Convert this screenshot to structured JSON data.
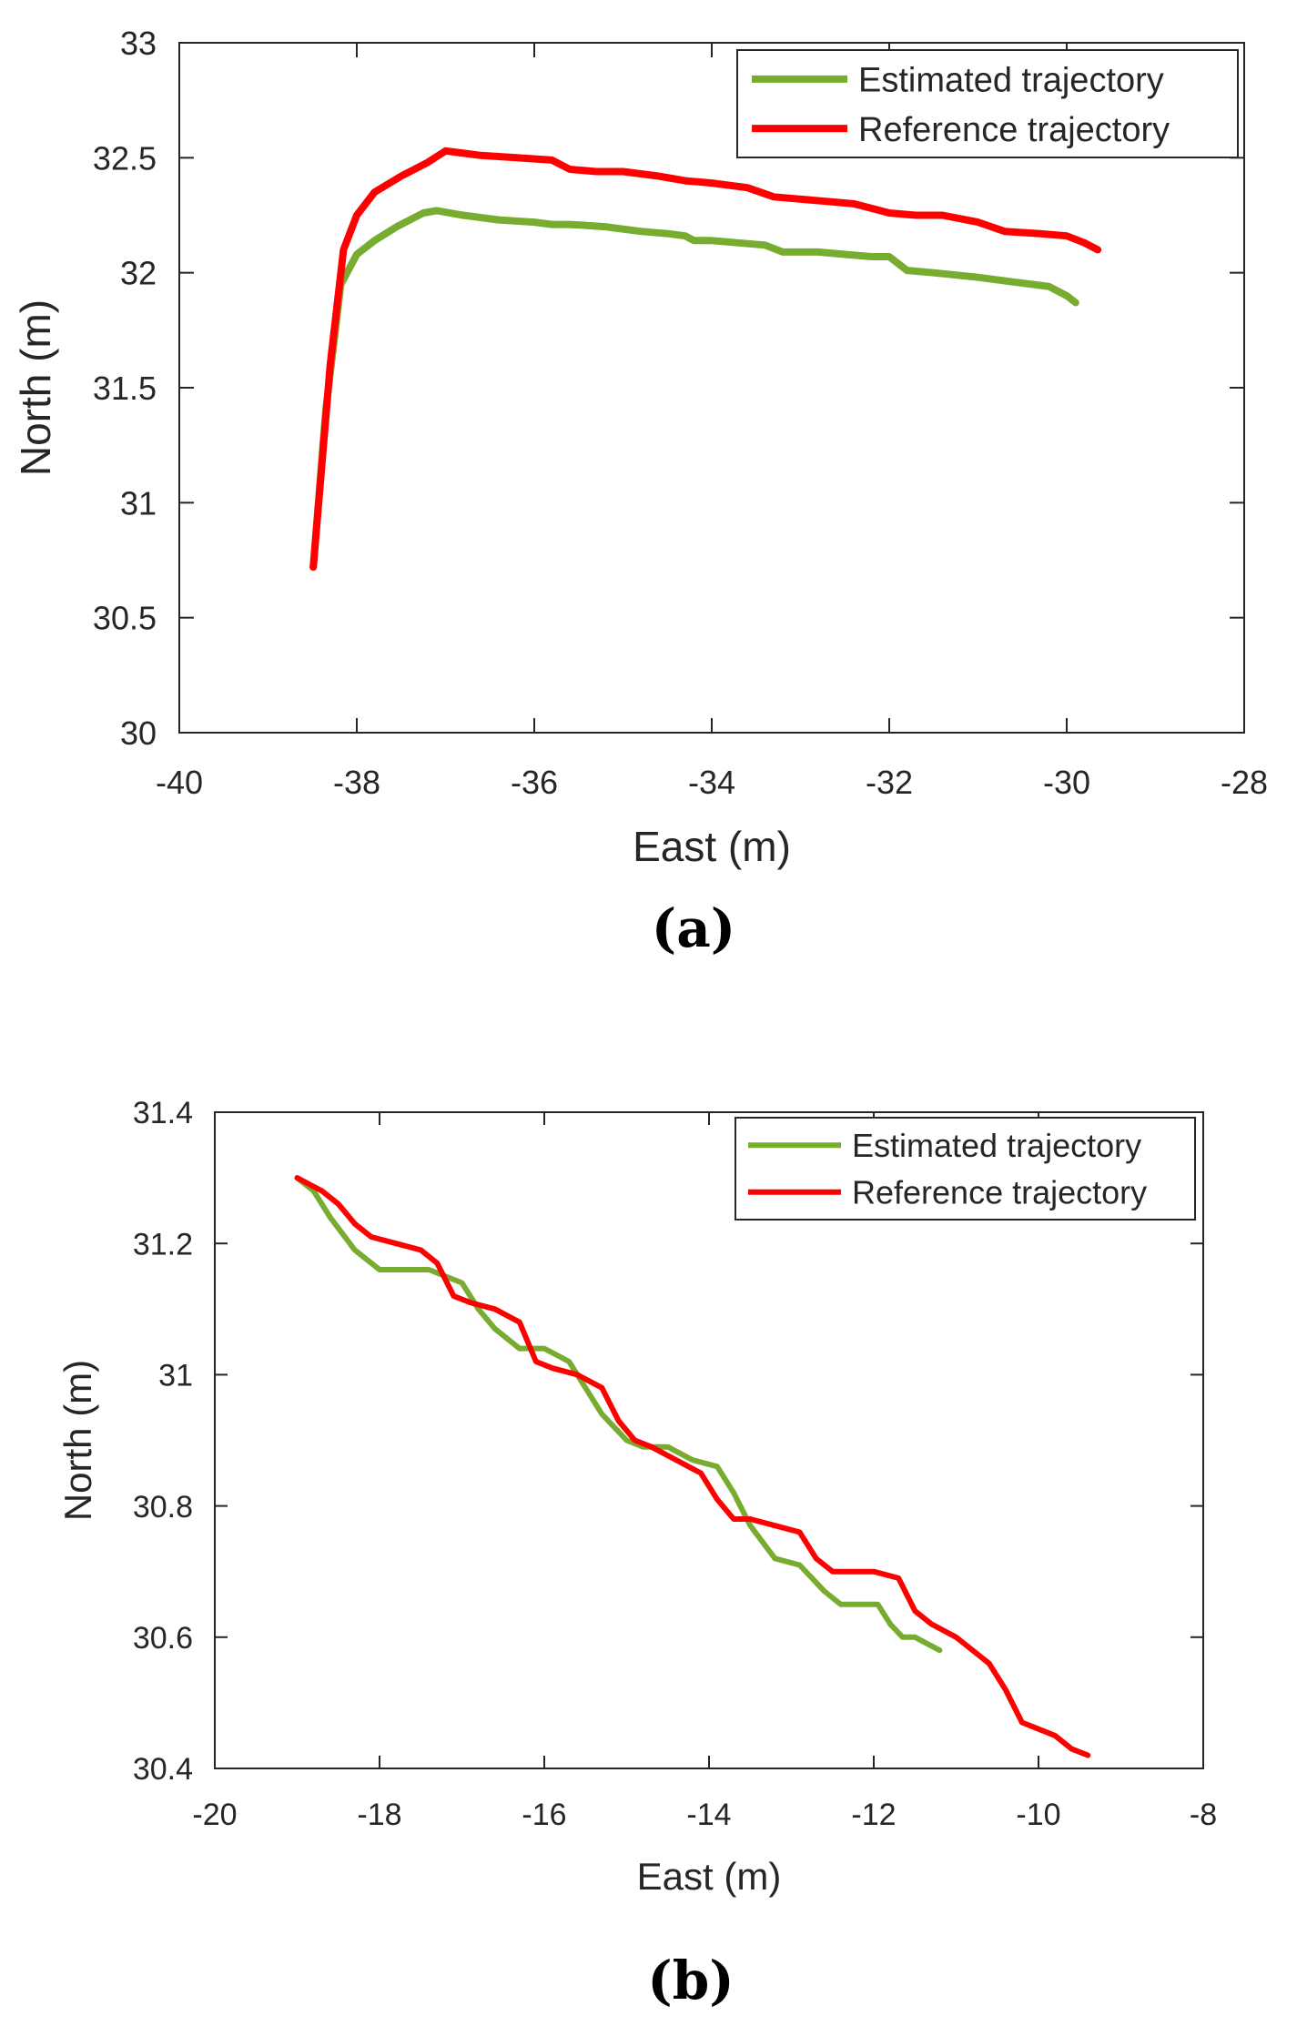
{
  "chart_data": [
    {
      "type": "line",
      "panel_label": "(a)",
      "xlabel": "East (m)",
      "ylabel": "North (m)",
      "xlim": [
        -40,
        -28
      ],
      "ylim": [
        30,
        33
      ],
      "xticks": [
        -40,
        -38,
        -36,
        -34,
        -32,
        -30,
        -28
      ],
      "yticks": [
        30,
        30.5,
        31,
        31.5,
        32,
        32.5,
        33
      ],
      "xtick_labels": [
        "-40",
        "-38",
        "-36",
        "-34",
        "-32",
        "-30",
        "-28"
      ],
      "ytick_labels": [
        "30",
        "30.5",
        "31",
        "31.5",
        "32",
        "32.5",
        "33"
      ],
      "grid": false,
      "legend_position": "top-right",
      "series": [
        {
          "name": "Estimated trajectory",
          "color": "#77ac30",
          "x": [
            -38.49,
            -38.35,
            -38.18,
            -38.0,
            -37.8,
            -37.55,
            -37.25,
            -37.1,
            -36.8,
            -36.4,
            -36.0,
            -35.8,
            -35.6,
            -35.2,
            -35.0,
            -34.8,
            -34.5,
            -34.3,
            -34.2,
            -34.0,
            -33.7,
            -33.4,
            -33.2,
            -32.8,
            -32.5,
            -32.2,
            -32.0,
            -31.8,
            -31.5,
            -31.0,
            -30.6,
            -30.2,
            -30.0,
            -29.9
          ],
          "y": [
            30.72,
            31.4,
            31.95,
            32.08,
            32.14,
            32.2,
            32.26,
            32.27,
            32.25,
            32.23,
            32.22,
            32.21,
            32.21,
            32.2,
            32.19,
            32.18,
            32.17,
            32.16,
            32.14,
            32.14,
            32.13,
            32.12,
            32.09,
            32.09,
            32.08,
            32.07,
            32.07,
            32.01,
            32.0,
            31.98,
            31.96,
            31.94,
            31.9,
            31.87
          ]
        },
        {
          "name": "Reference trajectory",
          "color": "#ff0000",
          "x": [
            -38.49,
            -38.3,
            -38.15,
            -38.0,
            -37.8,
            -37.5,
            -37.2,
            -37.0,
            -36.6,
            -36.2,
            -35.8,
            -35.6,
            -35.3,
            -35.0,
            -34.8,
            -34.6,
            -34.3,
            -34.0,
            -33.6,
            -33.3,
            -33.0,
            -32.7,
            -32.4,
            -32.2,
            -32.0,
            -31.7,
            -31.4,
            -31.0,
            -30.7,
            -30.3,
            -30.0,
            -29.8,
            -29.65
          ],
          "y": [
            30.72,
            31.6,
            32.1,
            32.25,
            32.35,
            32.42,
            32.48,
            32.53,
            32.51,
            32.5,
            32.49,
            32.45,
            32.44,
            32.44,
            32.43,
            32.42,
            32.4,
            32.39,
            32.37,
            32.33,
            32.32,
            32.31,
            32.3,
            32.28,
            32.26,
            32.25,
            32.25,
            32.22,
            32.18,
            32.17,
            32.16,
            32.13,
            32.1
          ]
        }
      ]
    },
    {
      "type": "line",
      "panel_label": "(b)",
      "xlabel": "East (m)",
      "ylabel": "North (m)",
      "xlim": [
        -20,
        -8
      ],
      "ylim": [
        30.4,
        31.4
      ],
      "xticks": [
        -20,
        -18,
        -16,
        -14,
        -12,
        -10,
        -8
      ],
      "yticks": [
        30.4,
        30.6,
        30.8,
        31,
        31.2,
        31.4
      ],
      "xtick_labels": [
        "-20",
        "-18",
        "-16",
        "-14",
        "-12",
        "-10",
        "-8"
      ],
      "ytick_labels": [
        "30.4",
        "30.6",
        "30.8",
        "31",
        "31.2",
        "31.4"
      ],
      "grid": false,
      "legend_position": "top-right",
      "series": [
        {
          "name": "Estimated trajectory",
          "color": "#77ac30",
          "x": [
            -19.0,
            -18.8,
            -18.6,
            -18.3,
            -18.0,
            -17.8,
            -17.4,
            -17.0,
            -16.8,
            -16.6,
            -16.3,
            -16.0,
            -15.7,
            -15.5,
            -15.3,
            -15.0,
            -14.8,
            -14.5,
            -14.2,
            -13.9,
            -13.7,
            -13.5,
            -13.2,
            -12.9,
            -12.6,
            -12.4,
            -12.25,
            -12.1,
            -11.95,
            -11.8,
            -11.65,
            -11.5,
            -11.35,
            -11.2
          ],
          "y": [
            31.3,
            31.28,
            31.24,
            31.19,
            31.16,
            31.16,
            31.16,
            31.14,
            31.1,
            31.07,
            31.04,
            31.04,
            31.02,
            30.98,
            30.94,
            30.9,
            30.89,
            30.89,
            30.87,
            30.86,
            30.82,
            30.77,
            30.72,
            30.71,
            30.67,
            30.65,
            30.65,
            30.65,
            30.65,
            30.62,
            30.6,
            30.6,
            30.59,
            30.58
          ]
        },
        {
          "name": "Reference trajectory",
          "color": "#ff0000",
          "x": [
            -19.0,
            -18.7,
            -18.5,
            -18.3,
            -18.1,
            -17.8,
            -17.5,
            -17.3,
            -17.1,
            -16.9,
            -16.6,
            -16.3,
            -16.1,
            -15.9,
            -15.6,
            -15.3,
            -15.1,
            -14.9,
            -14.7,
            -14.4,
            -14.1,
            -13.9,
            -13.7,
            -13.5,
            -13.2,
            -12.9,
            -12.7,
            -12.5,
            -12.3,
            -12.0,
            -11.7,
            -11.5,
            -11.3,
            -11.0,
            -10.8,
            -10.6,
            -10.4,
            -10.2,
            -10.0,
            -9.8,
            -9.6,
            -9.4
          ],
          "y": [
            31.3,
            31.28,
            31.26,
            31.23,
            31.21,
            31.2,
            31.19,
            31.17,
            31.12,
            31.11,
            31.1,
            31.08,
            31.02,
            31.01,
            31.0,
            30.98,
            30.93,
            30.9,
            30.89,
            30.87,
            30.85,
            30.81,
            30.78,
            30.78,
            30.77,
            30.76,
            30.72,
            30.7,
            30.7,
            30.7,
            30.69,
            30.64,
            30.62,
            30.6,
            30.58,
            30.56,
            30.52,
            30.47,
            30.46,
            30.45,
            30.43,
            30.42
          ]
        }
      ]
    }
  ]
}
